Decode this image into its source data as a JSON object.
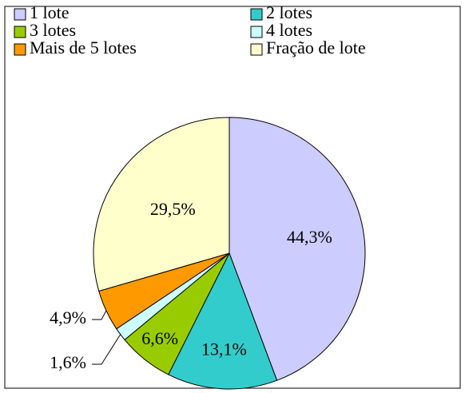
{
  "chart_data": {
    "type": "pie",
    "categories": [
      "1 lote",
      "2 lotes",
      "3 lotes",
      "4 lotes",
      "Mais de 5 lotes",
      "Fração de lote"
    ],
    "values": [
      44.3,
      13.1,
      6.6,
      1.6,
      4.9,
      29.5
    ],
    "value_labels": [
      "44,3%",
      "13,1%",
      "6,6%",
      "1,6%",
      "4,9%",
      "29,5%"
    ],
    "colors": [
      "#ccccff",
      "#33cccc",
      "#99cc00",
      "#ccffff",
      "#ff9900",
      "#ffffcc"
    ]
  }
}
